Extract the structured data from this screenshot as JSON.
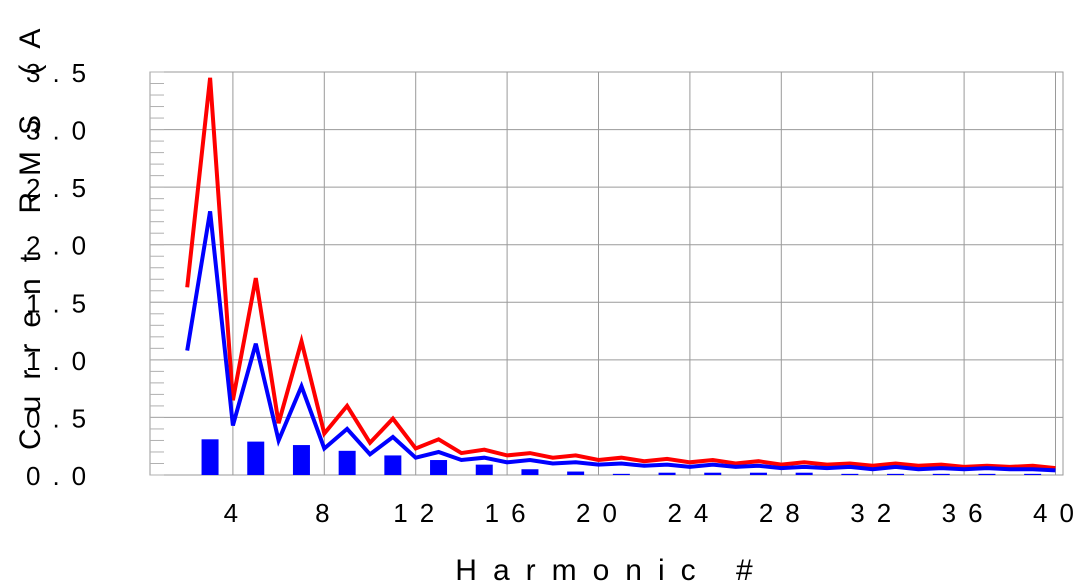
{
  "chart_data": {
    "type": "bar",
    "xlabel": "Harmonic #",
    "ylabel": "Current RMS (A",
    "xlim": [
      1,
      40
    ],
    "ylim": [
      0,
      3.5
    ],
    "x_ticks": [
      4,
      8,
      12,
      16,
      20,
      24,
      28,
      32,
      36,
      40
    ],
    "x_tick_labels": [
      "4",
      "8",
      "12",
      "16",
      "20",
      "24",
      "28",
      "32",
      "36",
      "40"
    ],
    "y_ticks": [
      0,
      0.5,
      1.0,
      1.5,
      2.0,
      2.5,
      3.0,
      3.5
    ],
    "y_tick_labels": [
      "0.0",
      "0.5",
      "1.0",
      "1.5",
      "2.0",
      "2.5",
      "3.0",
      "3.5"
    ],
    "grid": true,
    "series": [
      {
        "type": "line",
        "color": "#ff0000",
        "x": [
          2,
          3,
          4,
          5,
          6,
          7,
          8,
          9,
          10,
          11,
          12,
          13,
          14,
          15,
          16,
          17,
          18,
          19,
          20,
          21,
          22,
          23,
          24,
          25,
          26,
          27,
          28,
          29,
          30,
          31,
          32,
          33,
          34,
          35,
          36,
          37,
          38,
          39,
          40
        ],
        "values": [
          1.63,
          3.45,
          0.65,
          1.71,
          0.45,
          1.16,
          0.36,
          0.6,
          0.28,
          0.49,
          0.23,
          0.31,
          0.19,
          0.22,
          0.17,
          0.19,
          0.15,
          0.17,
          0.13,
          0.15,
          0.12,
          0.14,
          0.11,
          0.13,
          0.1,
          0.12,
          0.09,
          0.11,
          0.09,
          0.1,
          0.08,
          0.1,
          0.08,
          0.09,
          0.07,
          0.08,
          0.07,
          0.08,
          0.06
        ]
      },
      {
        "type": "line",
        "color": "#0000ff",
        "x": [
          2,
          3,
          4,
          5,
          6,
          7,
          8,
          9,
          10,
          11,
          12,
          13,
          14,
          15,
          16,
          17,
          18,
          19,
          20,
          21,
          22,
          23,
          24,
          25,
          26,
          27,
          28,
          29,
          30,
          31,
          32,
          33,
          34,
          35,
          36,
          37,
          38,
          39,
          40
        ],
        "values": [
          1.08,
          2.29,
          0.43,
          1.14,
          0.3,
          0.77,
          0.23,
          0.4,
          0.18,
          0.33,
          0.15,
          0.2,
          0.13,
          0.15,
          0.11,
          0.13,
          0.1,
          0.11,
          0.09,
          0.1,
          0.08,
          0.09,
          0.07,
          0.09,
          0.07,
          0.08,
          0.06,
          0.07,
          0.06,
          0.07,
          0.05,
          0.07,
          0.05,
          0.06,
          0.05,
          0.06,
          0.05,
          0.05,
          0.04
        ]
      },
      {
        "type": "bar",
        "color": "#0000ff",
        "x": [
          3,
          5,
          7,
          9,
          11,
          13,
          15,
          17,
          19,
          21,
          23,
          25,
          27,
          29,
          31,
          33,
          35,
          37,
          39
        ],
        "values": [
          0.31,
          0.29,
          0.26,
          0.21,
          0.17,
          0.13,
          0.09,
          0.05,
          0.03,
          0.01,
          0.02,
          0.02,
          0.02,
          0.02,
          0.01,
          0.01,
          0.01,
          0.01,
          0.01
        ]
      }
    ]
  }
}
